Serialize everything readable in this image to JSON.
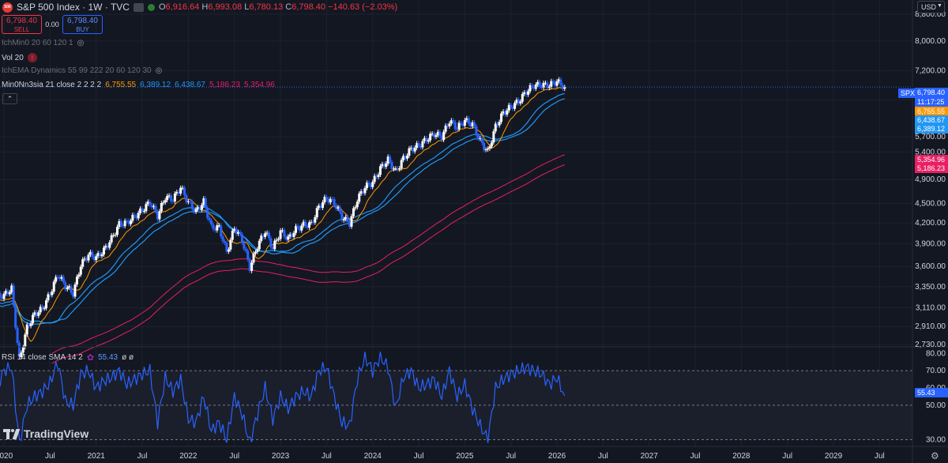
{
  "header": {
    "title": "S&P 500 Index · 1W · TVC",
    "open_label": "O",
    "open": "6,916.64",
    "high_label": "H",
    "high": "6,993.08",
    "low_label": "L",
    "low": "6,780.13",
    "close_label": "C",
    "close": "6,798.40",
    "change": "−140.63 (−2.03%)"
  },
  "trade": {
    "sell_price": "6,798.40",
    "sell_label": "SELL",
    "spread": "0.00",
    "buy_price": "6,798.40",
    "buy_label": "BUY"
  },
  "indicators": [
    {
      "label": "IchMin0 20 60 120 1"
    },
    {
      "label": "Vol 20"
    },
    {
      "label": "IchEMA Dynamics 55 99 222 20 60 120 30"
    },
    {
      "label": "Min0Nn3sia 21 close 2 2 2 2",
      "values": [
        "6,755.55",
        "6,389.12",
        "6,438.67",
        "5,186.23",
        "5,354.96"
      ]
    }
  ],
  "rsi_legend": {
    "label": "RSI 14 close SMA 14 2",
    "value": "55.43",
    "extra": "ø ø"
  },
  "currency": "USD",
  "brand": "TradingView",
  "price_tags": {
    "symbol": "SPX",
    "last": "6,798.40",
    "countdown": "11:17:25",
    "ma_orange": "6,755.55",
    "ema_blue1": "6,438.67",
    "ema_blue2": "6,389.12",
    "pink1": "5,354.96",
    "pink2": "5,186.23",
    "rsi": "55.43"
  },
  "colors": {
    "bg": "#131722",
    "grid": "#1e222d",
    "candle_up": "#ffffff",
    "candle_down": "#2962ff",
    "orange": "#ff9800",
    "blue": "#2196f3",
    "pink": "#e91e63",
    "rsi": "#2962ff",
    "text": "#d1d4dc"
  },
  "chart_data": [
    {
      "type": "candlestick",
      "title": "S&P 500 Index · 1W · TVC",
      "y_scale": "log",
      "ylim": [
        2730,
        9000
      ],
      "y_ticks": [
        8800,
        8000,
        7200,
        6500,
        5700,
        5400,
        4900,
        4500,
        4200,
        3900,
        3600,
        3350,
        3110,
        2910,
        2730
      ],
      "y_tick_labels": [
        "8,800.00",
        "8,000.00",
        "7,200.00",
        "6,500.00",
        "5,700.00",
        "5,400.00",
        "4,900.00",
        "4,500.00",
        "4,200.00",
        "3,900.00",
        "3,600.00",
        "3,350.00",
        "3,110.00",
        "2,910.00",
        "2,730.00"
      ],
      "x_range": [
        "2019-12",
        "2029-12"
      ],
      "x_ticks": [
        {
          "date": "2020-01",
          "label": "2020"
        },
        {
          "date": "2020-07",
          "label": "Jul"
        },
        {
          "date": "2021-01",
          "label": "2021"
        },
        {
          "date": "2021-07",
          "label": "Jul"
        },
        {
          "date": "2022-01",
          "label": "2022"
        },
        {
          "date": "2022-07",
          "label": "Jul"
        },
        {
          "date": "2023-01",
          "label": "2023"
        },
        {
          "date": "2023-07",
          "label": "Jul"
        },
        {
          "date": "2024-01",
          "label": "2024"
        },
        {
          "date": "2024-07",
          "label": "Jul"
        },
        {
          "date": "2025-01",
          "label": "2025"
        },
        {
          "date": "2025-07",
          "label": "Jul"
        },
        {
          "date": "2026-01",
          "label": "2026"
        },
        {
          "date": "2026-07",
          "label": "Jul"
        },
        {
          "date": "2027-01",
          "label": "2027"
        },
        {
          "date": "2027-07",
          "label": "Jul"
        },
        {
          "date": "2028-01",
          "label": "2028"
        },
        {
          "date": "2028-07",
          "label": "Jul"
        },
        {
          "date": "2029-01",
          "label": "2029"
        },
        {
          "date": "2029-07",
          "label": "Jul"
        }
      ],
      "series": [
        {
          "name": "SPX",
          "style": "candles",
          "x": [
            "2019-12",
            "2020-01",
            "2020-02",
            "2020-03",
            "2020-04",
            "2020-05",
            "2020-06",
            "2020-07",
            "2020-08",
            "2020-09",
            "2020-10",
            "2020-11",
            "2020-12",
            "2021-01",
            "2021-02",
            "2021-03",
            "2021-04",
            "2021-05",
            "2021-06",
            "2021-07",
            "2021-08",
            "2021-09",
            "2021-10",
            "2021-11",
            "2021-12",
            "2022-01",
            "2022-02",
            "2022-03",
            "2022-04",
            "2022-05",
            "2022-06",
            "2022-07",
            "2022-08",
            "2022-09",
            "2022-10",
            "2022-11",
            "2022-12",
            "2023-01",
            "2023-02",
            "2023-03",
            "2023-04",
            "2023-05",
            "2023-06",
            "2023-07",
            "2023-08",
            "2023-09",
            "2023-10",
            "2023-11",
            "2023-12",
            "2024-01",
            "2024-02",
            "2024-03",
            "2024-04",
            "2024-05",
            "2024-06",
            "2024-07",
            "2024-08",
            "2024-09",
            "2024-10",
            "2024-11",
            "2024-12",
            "2025-01",
            "2025-02",
            "2025-03",
            "2025-04",
            "2025-05",
            "2025-06",
            "2025-07",
            "2025-08",
            "2025-09",
            "2025-10",
            "2025-11",
            "2025-12",
            "2026-01",
            "2026-02"
          ],
          "close": [
            3230,
            3250,
            3330,
            2580,
            2900,
            3040,
            3100,
            3270,
            3500,
            3360,
            3270,
            3620,
            3756,
            3714,
            3811,
            3973,
            4181,
            4204,
            4297,
            4395,
            4522,
            4307,
            4605,
            4567,
            4766,
            4515,
            4373,
            4530,
            4131,
            4132,
            3785,
            4130,
            3955,
            3585,
            3872,
            4080,
            3839,
            4077,
            3970,
            4109,
            4169,
            4180,
            4450,
            4589,
            4507,
            4288,
            4194,
            4568,
            4770,
            4846,
            5096,
            5254,
            5036,
            5278,
            5460,
            5522,
            5648,
            5762,
            5705,
            6032,
            5882,
            6040,
            5955,
            5611,
            5400,
            5912,
            6204,
            6339,
            6460,
            6688,
            6840,
            6849,
            6845,
            6939,
            6798
          ],
          "last": {
            "open": 6916.64,
            "high": 6993.08,
            "low": 6780.13,
            "close": 6798.4
          }
        },
        {
          "name": "MA orange",
          "color": "#ff9800",
          "last": 6755.55
        },
        {
          "name": "EMA blue 1",
          "color": "#2196f3",
          "last": 6438.67
        },
        {
          "name": "EMA blue 2",
          "color": "#2196f3",
          "last": 6389.12
        },
        {
          "name": "Pink 1",
          "color": "#e91e63",
          "last": 5354.96
        },
        {
          "name": "Pink 2",
          "color": "#e91e63",
          "last": 5186.23
        }
      ]
    },
    {
      "type": "line",
      "title": "RSI 14 close SMA 14 2",
      "ylim": [
        27,
        82
      ],
      "y_ticks": [
        80,
        70,
        60,
        50,
        30
      ],
      "y_tick_labels": [
        "80.00",
        "70.00",
        "60.00",
        "50.00",
        "30.00"
      ],
      "bands": [
        70,
        50,
        30
      ],
      "series": [
        {
          "name": "RSI",
          "color": "#2962ff",
          "values": [
            60,
            70,
            72,
            28,
            50,
            55,
            58,
            63,
            75,
            52,
            50,
            68,
            70,
            60,
            64,
            66,
            70,
            62,
            65,
            68,
            70,
            40,
            66,
            58,
            65,
            42,
            40,
            55,
            35,
            40,
            30,
            55,
            45,
            28,
            45,
            60,
            42,
            55,
            48,
            55,
            58,
            55,
            70,
            72,
            55,
            40,
            38,
            65,
            78,
            70,
            78,
            72,
            48,
            66,
            70,
            60,
            62,
            65,
            55,
            70,
            55,
            62,
            48,
            38,
            30,
            60,
            65,
            68,
            70,
            72,
            70,
            68,
            62,
            66,
            55.43
          ]
        }
      ]
    }
  ]
}
